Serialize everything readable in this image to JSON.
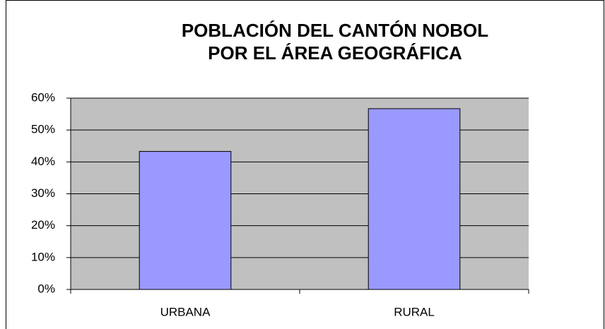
{
  "chart_data": {
    "type": "bar",
    "title": [
      "POBLACIÓN DEL CANTÓN NOBOL",
      "POR EL ÁREA GEOGRÁFICA"
    ],
    "categories": [
      "URBANA",
      "RURAL"
    ],
    "values": [
      43.3,
      56.7
    ],
    "color": "#9999ff",
    "ylim": [
      0,
      60
    ],
    "yticks": [
      {
        "value": 0,
        "label": "0%"
      },
      {
        "value": 10,
        "label": "10%"
      },
      {
        "value": 20,
        "label": "20%"
      },
      {
        "value": 30,
        "label": "30%"
      },
      {
        "value": 40,
        "label": "40%"
      },
      {
        "value": 50,
        "label": "50%"
      },
      {
        "value": 60,
        "label": "60%"
      }
    ],
    "grid": true
  }
}
